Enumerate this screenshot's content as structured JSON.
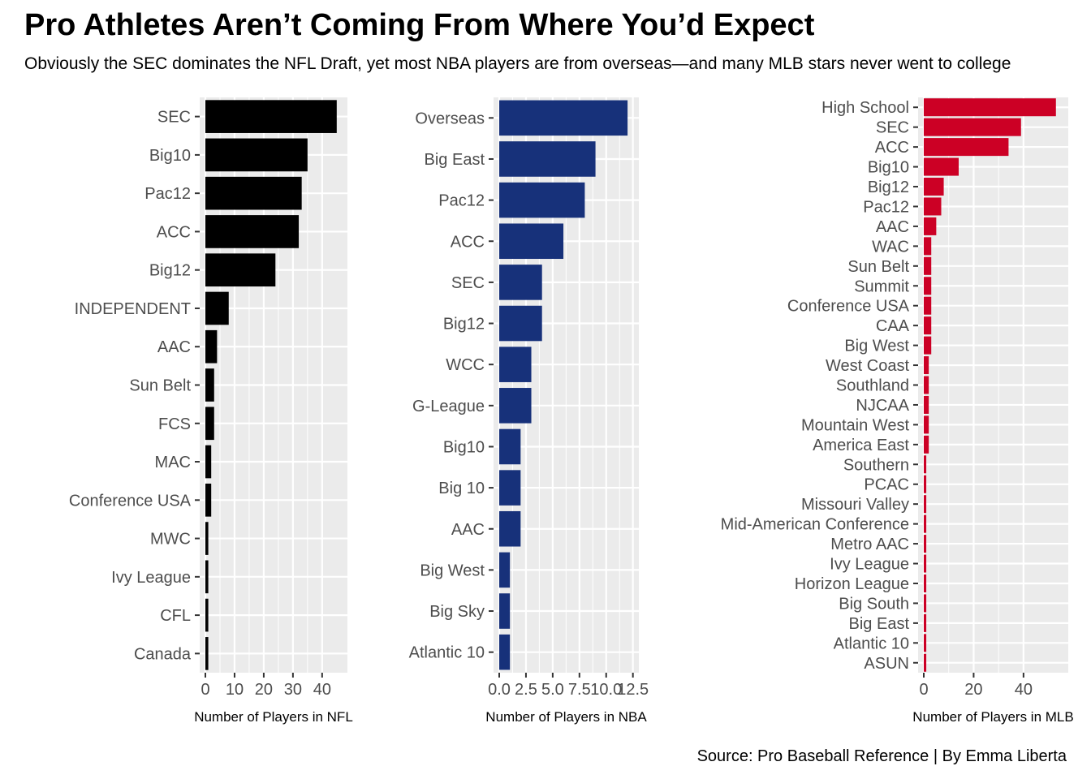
{
  "title": "Pro Athletes Aren’t Coming From Where You’d Expect",
  "subtitle": "Obviously the SEC dominates the NFL Draft, yet most NBA players are from overseas—and many MLB stars never went to college",
  "caption": "Source: Pro Baseball Reference | By Emma Liberta",
  "chart_data": [
    {
      "type": "bar",
      "orientation": "horizontal",
      "color": "#000000",
      "xlabel": "Number of Players in NFL",
      "ylabel": "",
      "xlim": [
        0,
        47
      ],
      "xticks": [
        0,
        10,
        20,
        30,
        40
      ],
      "tick_labels": [
        "0",
        "10",
        "20",
        "30",
        "40"
      ],
      "categories": [
        "SEC",
        "Big10",
        "Pac12",
        "ACC",
        "Big12",
        "INDEPENDENT",
        "AAC",
        "Sun Belt",
        "FCS",
        "MAC",
        "Conference USA",
        "MWC",
        "Ivy League",
        "CFL",
        "Canada"
      ],
      "values": [
        45,
        35,
        33,
        32,
        24,
        8,
        4,
        3,
        3,
        2,
        2,
        1,
        1,
        1,
        1
      ]
    },
    {
      "type": "bar",
      "orientation": "horizontal",
      "color": "#17317A",
      "xlabel": "Number of Players in NBA",
      "ylabel": "",
      "xlim": [
        0,
        12.6
      ],
      "xticks": [
        0,
        2.5,
        5,
        7.5,
        10,
        12.5
      ],
      "tick_labels": [
        "0.0",
        "2.5",
        "5.0",
        "7.5",
        "10.0",
        "12.5"
      ],
      "categories": [
        "Overseas",
        "Big East",
        "Pac12",
        "ACC",
        "SEC",
        "Big12",
        "WCC",
        "G-League",
        "Big10",
        "Big 10",
        "AAC",
        "Big West",
        "Big Sky",
        "Atlantic 10"
      ],
      "values": [
        12,
        9,
        8,
        6,
        4,
        4,
        3,
        3,
        2,
        2,
        2,
        1,
        1,
        1
      ]
    },
    {
      "type": "bar",
      "orientation": "horizontal",
      "color": "#CC0025",
      "xlabel": "Number of Players in MLB",
      "ylabel": "",
      "xlim": [
        0,
        56
      ],
      "xticks": [
        0,
        20,
        40
      ],
      "tick_labels": [
        "0",
        "20",
        "40"
      ],
      "categories": [
        "High School",
        "SEC",
        "ACC",
        "Big10",
        "Big12",
        "Pac12",
        "AAC",
        "WAC",
        "Sun Belt",
        "Summit",
        "Conference USA",
        "CAA",
        "Big West",
        "West Coast",
        "Southland",
        "NJCAA",
        "Mountain West",
        "America East",
        "Southern",
        "PCAC",
        "Missouri Valley",
        "Mid-American Conference",
        "Metro AAC",
        "Ivy League",
        "Horizon League",
        "Big South",
        "Big East",
        "Atlantic 10",
        "ASUN"
      ],
      "values": [
        53,
        39,
        34,
        14,
        8,
        7,
        5,
        3,
        3,
        3,
        3,
        3,
        3,
        2,
        2,
        2,
        2,
        2,
        1,
        1,
        1,
        1,
        1,
        1,
        1,
        1,
        1,
        1,
        1
      ]
    }
  ]
}
